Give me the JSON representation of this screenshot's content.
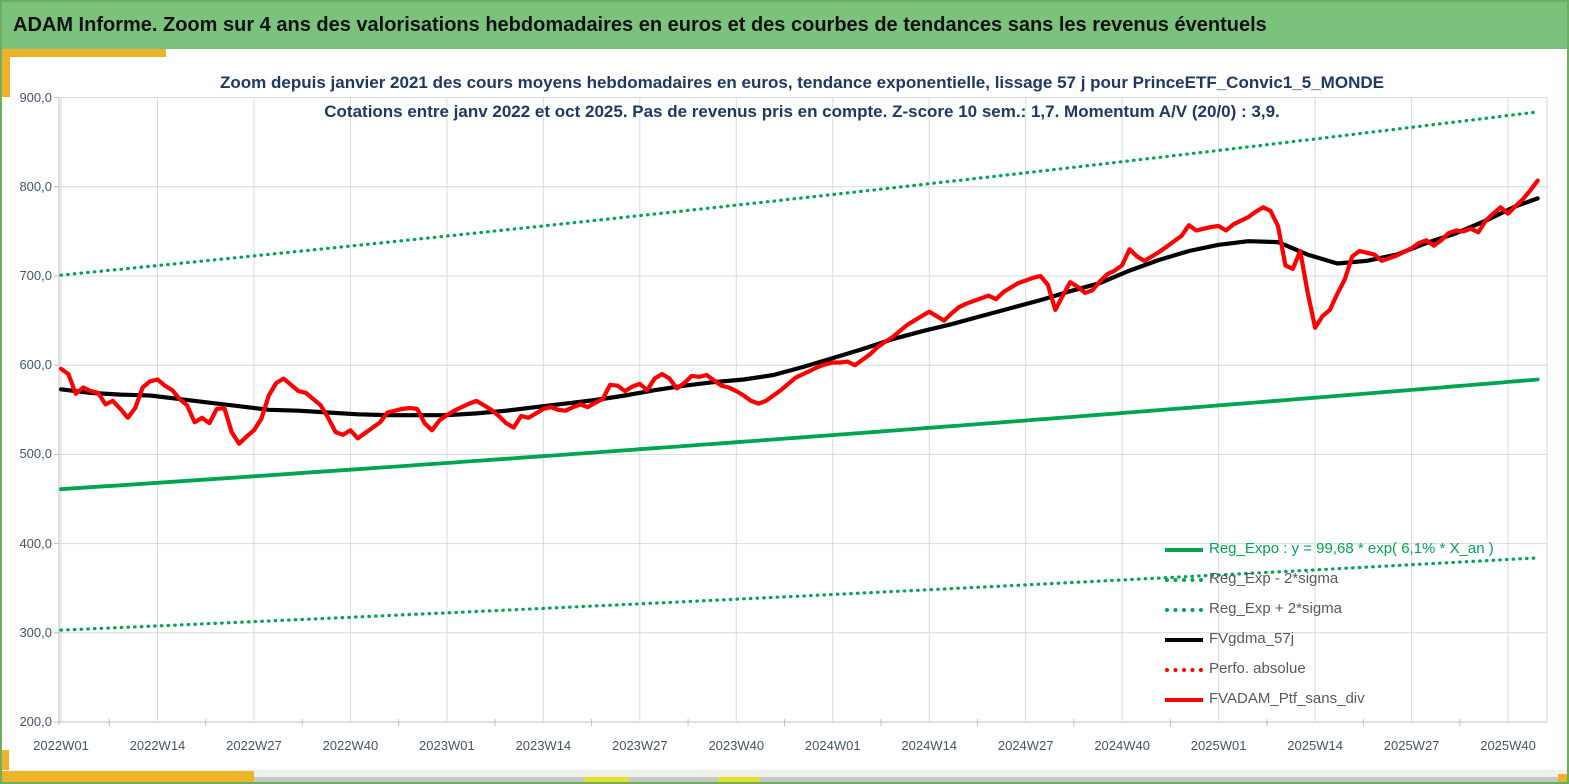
{
  "header": {
    "title": "ADAM Informe. Zoom sur 4 ans des valorisations hebdomadaires en euros et des courbes de tendances sans les revenus éventuels"
  },
  "colors": {
    "header_green": "#7bc27d",
    "accent_gold": "#efb32a",
    "series_green": "#00a551",
    "series_red": "#fe0000",
    "series_black": "#000000",
    "title_navy": "#1f3864",
    "axis_label": "#44546a",
    "gridline": "#d9d9d9",
    "legend_text": "#595959"
  },
  "chart_data": {
    "type": "line",
    "title_line1": "Zoom depuis janvier 2021 des cours moyens hebdomadaires en euros, tendance exponentielle, lissage 57 j pour PrinceETF_Convic1_5_MONDE",
    "title_line2": "Cotations entre janv 2022 et oct 2025. Pas de revenus pris en compte. Z-score 10 sem.: 1,7. Momentum A/V (20/0) : 3,9.",
    "y_axis": {
      "tick_labels": [
        "900,0",
        "800,0",
        "700,0",
        "600,0",
        "500,0",
        "400,0",
        "300,0",
        "200,0"
      ],
      "tick_values": [
        900,
        800,
        700,
        600,
        500,
        400,
        300,
        200
      ],
      "range": [
        200,
        900
      ]
    },
    "x_axis": {
      "tick_labels": [
        "2022W01",
        "2022W14",
        "2022W27",
        "2022W40",
        "2023W01",
        "2023W14",
        "2023W27",
        "2023W40",
        "2024W01",
        "2024W14",
        "2024W27",
        "2024W40",
        "2025W01",
        "2025W14",
        "2025W27",
        "2025W40"
      ],
      "weeks_per_tick": 13,
      "weeks_total": 200
    },
    "legend": {
      "items": [
        {
          "label": "Reg_Expo : y = 99,68 * exp( 6,1% *  X_an )",
          "line": "solid",
          "color": "#00a551",
          "text_color": "#00a551"
        },
        {
          "label": "Reg_Exp - 2*sigma",
          "line": "dotted",
          "color": "#00a551",
          "text_color": "#595959"
        },
        {
          "label": "Reg_Exp + 2*sigma",
          "line": "dotted",
          "color": "#00a551",
          "text_color": "#595959"
        },
        {
          "label": "FVgdma_57j",
          "line": "solid",
          "color": "#000000",
          "text_color": "#595959"
        },
        {
          "label": "Perfo. absolue",
          "line": "dotted",
          "color": "#fe0000",
          "text_color": "#595959"
        },
        {
          "label": "FVADAM_Ptf_sans_div",
          "line": "solid",
          "color": "#fe0000",
          "text_color": "#595959"
        }
      ]
    },
    "series": [
      {
        "name": "Reg_Exp - 2*sigma",
        "style": "dotted",
        "color": "#00a551",
        "width": 3.2,
        "model": "exponential",
        "start_value": 303,
        "end_value": 384
      },
      {
        "name": "Reg_Exp + 2*sigma",
        "style": "dotted",
        "color": "#00a551",
        "width": 3.2,
        "model": "exponential",
        "start_value": 701,
        "end_value": 884
      },
      {
        "name": "Reg_Expo",
        "style": "solid",
        "color": "#00a551",
        "width": 3.8,
        "model": "exponential",
        "start_value": 461,
        "end_value": 584
      },
      {
        "name": "Perfo. absolue",
        "style": "dotted",
        "color": "#fe0000",
        "width": 2.8,
        "same_as": "FVADAM_Ptf_sans_div"
      },
      {
        "name": "FVgdma_57j",
        "style": "solid",
        "color": "#000000",
        "width": 4.2,
        "anchors": [
          [
            0,
            573
          ],
          [
            4,
            569
          ],
          [
            8,
            567
          ],
          [
            12,
            566
          ],
          [
            16,
            562
          ],
          [
            20,
            558
          ],
          [
            24,
            554
          ],
          [
            28,
            550
          ],
          [
            32,
            549
          ],
          [
            36,
            547
          ],
          [
            40,
            545
          ],
          [
            44,
            544
          ],
          [
            48,
            544
          ],
          [
            52,
            544
          ],
          [
            56,
            546
          ],
          [
            60,
            549
          ],
          [
            64,
            553
          ],
          [
            68,
            557
          ],
          [
            72,
            561
          ],
          [
            76,
            566
          ],
          [
            80,
            572
          ],
          [
            84,
            577
          ],
          [
            88,
            581
          ],
          [
            92,
            584
          ],
          [
            96,
            589
          ],
          [
            100,
            598
          ],
          [
            104,
            608
          ],
          [
            108,
            618
          ],
          [
            112,
            629
          ],
          [
            116,
            638
          ],
          [
            120,
            646
          ],
          [
            124,
            655
          ],
          [
            128,
            664
          ],
          [
            132,
            673
          ],
          [
            136,
            683
          ],
          [
            140,
            692
          ],
          [
            144,
            706
          ],
          [
            148,
            718
          ],
          [
            152,
            728
          ],
          [
            156,
            735
          ],
          [
            160,
            739
          ],
          [
            164,
            738
          ],
          [
            168,
            724
          ],
          [
            172,
            714
          ],
          [
            176,
            717
          ],
          [
            180,
            724
          ],
          [
            184,
            737
          ],
          [
            188,
            748
          ],
          [
            192,
            762
          ],
          [
            196,
            778
          ],
          [
            199,
            787
          ]
        ]
      },
      {
        "name": "FVADAM_Ptf_sans_div",
        "style": "solid",
        "color": "#fe0000",
        "width": 4.2,
        "values_weekly": [
          596,
          590,
          568,
          575,
          571,
          569,
          556,
          560,
          551,
          541,
          552,
          575,
          582,
          584,
          577,
          572,
          562,
          555,
          536,
          541,
          535,
          551,
          552,
          525,
          512,
          520,
          527,
          540,
          566,
          580,
          585,
          578,
          571,
          569,
          562,
          555,
          541,
          525,
          522,
          527,
          518,
          524,
          530,
          536,
          547,
          549,
          551,
          552,
          551,
          535,
          527,
          538,
          544,
          549,
          553,
          557,
          560,
          555,
          550,
          543,
          535,
          530,
          543,
          541,
          546,
          551,
          553,
          550,
          549,
          553,
          556,
          553,
          558,
          562,
          578,
          577,
          571,
          576,
          579,
          572,
          585,
          590,
          585,
          574,
          580,
          588,
          587,
          589,
          583,
          577,
          575,
          571,
          566,
          560,
          557,
          560,
          566,
          572,
          579,
          586,
          590,
          594,
          598,
          601,
          603,
          603,
          604,
          600,
          606,
          612,
          620,
          626,
          631,
          638,
          645,
          650,
          655,
          660,
          655,
          650,
          658,
          665,
          669,
          672,
          675,
          678,
          674,
          682,
          687,
          692,
          695,
          698,
          700,
          690,
          662,
          678,
          693,
          688,
          681,
          684,
          694,
          702,
          706,
          712,
          730,
          722,
          717,
          722,
          727,
          733,
          739,
          745,
          757,
          751,
          753,
          755,
          756,
          751,
          758,
          762,
          766,
          772,
          777,
          773,
          756,
          712,
          708,
          728,
          682,
          642,
          655,
          662,
          680,
          696,
          722,
          728,
          726,
          724,
          717,
          720,
          723,
          727,
          731,
          737,
          740,
          734,
          740,
          748,
          751,
          750,
          753,
          749,
          762,
          770,
          777,
          770,
          778,
          786,
          796,
          807
        ]
      }
    ]
  }
}
